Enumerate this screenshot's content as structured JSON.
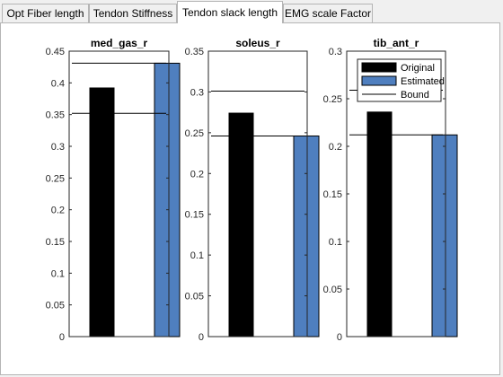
{
  "tabs": [
    {
      "label": "Opt Fiber length",
      "active": false
    },
    {
      "label": "Tendon Stiffness",
      "active": false
    },
    {
      "label": "Tendon slack length",
      "active": true
    },
    {
      "label": "EMG scale Factor",
      "active": false
    }
  ],
  "colors": {
    "original": "#000000",
    "estimated": "#4f7fbf",
    "bound": "#000000"
  },
  "legend": {
    "placement": "top-right",
    "entries": [
      "Original",
      "Estimated",
      "Bound"
    ]
  },
  "chart_data": [
    {
      "type": "bar",
      "title": "med_gas_r",
      "ylim": [
        0,
        0.45
      ],
      "yticks": [
        0,
        0.05,
        0.1,
        0.15,
        0.2,
        0.25,
        0.3,
        0.35,
        0.4,
        0.45
      ],
      "ytick_labels": [
        "0",
        "0.05",
        "0.1",
        "0.15",
        "0.2",
        "0.25",
        "0.3",
        "0.35",
        "0.4",
        "0.45"
      ],
      "series": [
        {
          "name": "Original",
          "values": [
            0.392
          ]
        },
        {
          "name": "Estimated",
          "values": [
            0.431
          ]
        }
      ],
      "bounds": [
        0.352,
        0.431
      ],
      "legend": false
    },
    {
      "type": "bar",
      "title": "soleus_r",
      "ylim": [
        0,
        0.35
      ],
      "yticks": [
        0,
        0.05,
        0.1,
        0.15,
        0.2,
        0.25,
        0.3,
        0.35
      ],
      "ytick_labels": [
        "0",
        "0.05",
        "0.1",
        "0.15",
        "0.2",
        "0.25",
        "0.3",
        "0.35"
      ],
      "series": [
        {
          "name": "Original",
          "values": [
            0.274
          ]
        },
        {
          "name": "Estimated",
          "values": [
            0.246
          ]
        }
      ],
      "bounds": [
        0.246,
        0.301
      ],
      "legend": false
    },
    {
      "type": "bar",
      "title": "tib_ant_r",
      "ylim": [
        0,
        0.3
      ],
      "yticks": [
        0,
        0.05,
        0.1,
        0.15,
        0.2,
        0.25,
        0.3
      ],
      "ytick_labels": [
        "0",
        "0.05",
        "0.1",
        "0.15",
        "0.2",
        "0.25",
        "0.3"
      ],
      "series": [
        {
          "name": "Original",
          "values": [
            0.236
          ]
        },
        {
          "name": "Estimated",
          "values": [
            0.212
          ]
        }
      ],
      "bounds": [
        0.212,
        0.259
      ],
      "legend": true
    }
  ]
}
